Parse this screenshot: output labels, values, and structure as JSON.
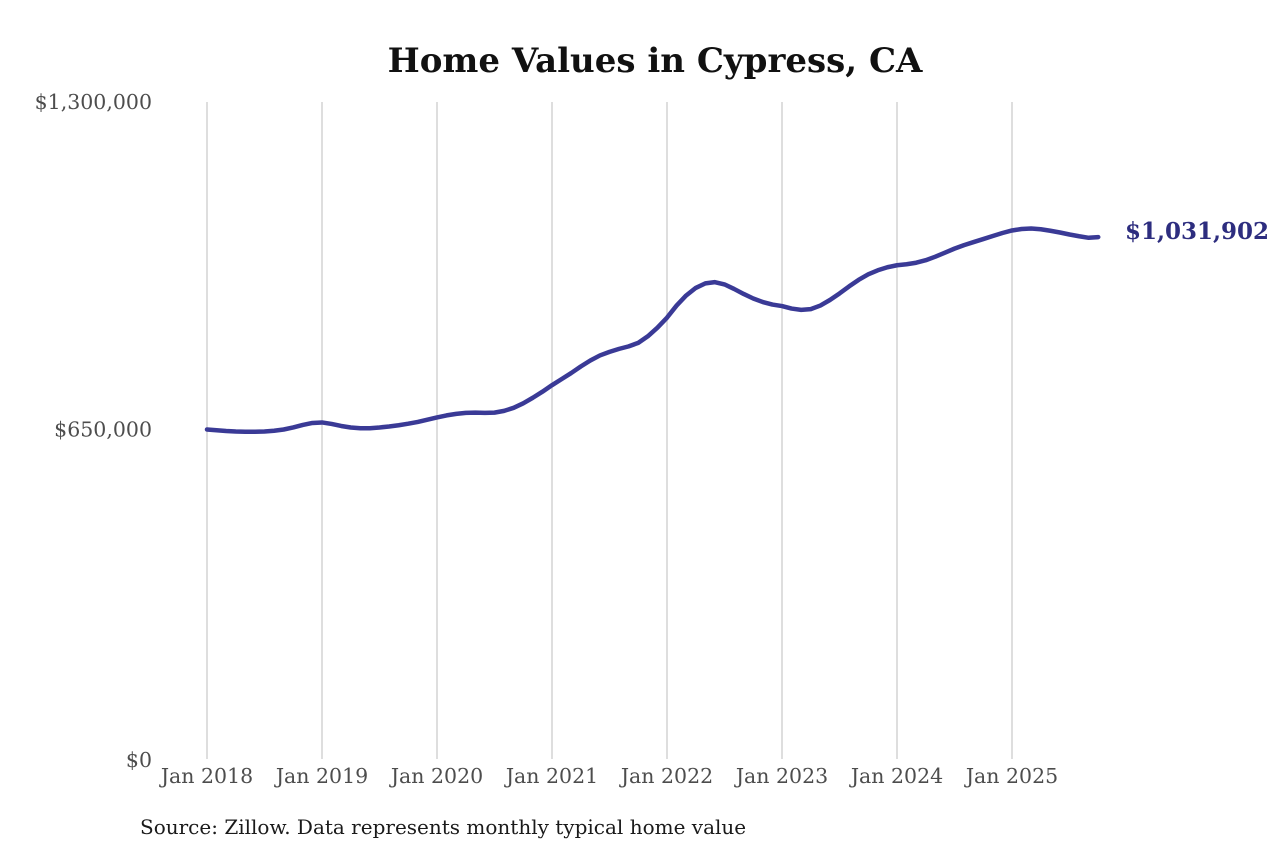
{
  "chart": {
    "title": "Home Values in Cypress, CA",
    "source": "Source: Zillow. Data represents monthly typical home value",
    "latest_value_label": "$1,031,902"
  },
  "colors": {
    "line": "#3a3a96",
    "latest_label": "#2d2d7f",
    "axis_text": "#4d4d4d",
    "gridline": "#cccccc",
    "title_text": "#111111",
    "source_text": "#1a1a1a",
    "background": "#ffffff"
  },
  "chart_data": {
    "type": "line",
    "title": "Home Values in Cypress, CA",
    "xlabel": "",
    "ylabel": "",
    "frequency": "monthly",
    "x_start": "Jan 2018",
    "x_end": "Oct 2025",
    "x_tick_labels": [
      "Jan 2018",
      "Jan 2019",
      "Jan 2020",
      "Jan 2021",
      "Jan 2022",
      "Jan 2023",
      "Jan 2024",
      "Jan 2025"
    ],
    "y_ticks": [
      {
        "label": "$0",
        "value": 0
      },
      {
        "label": "$650,000",
        "value": 650000
      },
      {
        "label": "$1,300,000",
        "value": 1300000
      }
    ],
    "ylim": [
      0,
      1300000
    ],
    "grid": "vertical-yearly-only",
    "legend": "none",
    "latest_value": 1031902,
    "latest_value_label": "$1,031,902",
    "series": [
      {
        "name": "Typical home value",
        "monthly_values": [
          650000,
          648500,
          647000,
          646000,
          645500,
          645500,
          646000,
          647500,
          650000,
          654000,
          659000,
          663000,
          664000,
          661000,
          657000,
          654000,
          652500,
          652500,
          654000,
          656000,
          658500,
          661500,
          665000,
          669500,
          674000,
          678000,
          681000,
          683000,
          683500,
          683000,
          683500,
          687000,
          693000,
          702000,
          713000,
          725000,
          738000,
          750000,
          762000,
          775000,
          787000,
          797000,
          804000,
          810000,
          815000,
          822000,
          835000,
          852000,
          872000,
          896000,
          916000,
          931000,
          940000,
          942500,
          938000,
          929000,
          919000,
          910000,
          903000,
          898000,
          895000,
          890000,
          887500,
          889000,
          896000,
          907000,
          920000,
          934000,
          947000,
          958000,
          966000,
          972000,
          976000,
          978000,
          981000,
          986000,
          993000,
          1001000,
          1009000,
          1016000,
          1022000,
          1028000,
          1034000,
          1040000,
          1045000,
          1048000,
          1049000,
          1047500,
          1044500,
          1041000,
          1037000,
          1033500,
          1030500,
          1031902
        ]
      }
    ]
  }
}
